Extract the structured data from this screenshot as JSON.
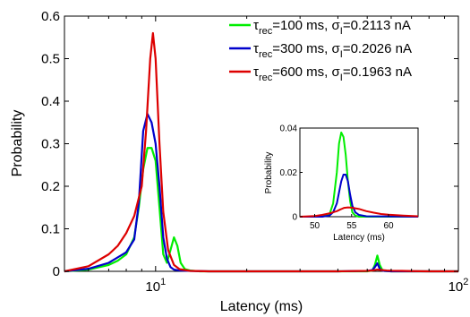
{
  "chart_data": [
    {
      "type": "line",
      "title": "",
      "xlabel": "Latency (ms)",
      "ylabel": "Probability",
      "xscale": "log",
      "xlim": [
        5,
        100
      ],
      "ylim": [
        0,
        0.6
      ],
      "xticks": [
        {
          "value": 10,
          "base": "10",
          "exp": "1"
        },
        {
          "value": 100,
          "base": "10",
          "exp": "2"
        }
      ],
      "yticks": [
        {
          "value": 0,
          "label": "0"
        },
        {
          "value": 0.1,
          "label": "0.1"
        },
        {
          "value": 0.2,
          "label": "0.2"
        },
        {
          "value": 0.3,
          "label": "0.3"
        },
        {
          "value": 0.4,
          "label": "0.4"
        },
        {
          "value": 0.5,
          "label": "0.5"
        },
        {
          "value": 0.6,
          "label": "0.6"
        }
      ],
      "legend_position": "top-right",
      "series": [
        {
          "id": "tau100",
          "color": "#00ee00",
          "legend": {
            "a": "τ",
            "a_sub": "rec",
            "b": "=100 ms, σ",
            "b_sub": "I",
            "c": "=0.2113 nA"
          },
          "x": [
            5,
            6,
            7,
            7.5,
            8,
            8.5,
            8.8,
            9.1,
            9.4,
            9.7,
            10.0,
            10.3,
            10.6,
            10.9,
            11.2,
            11.5,
            11.8,
            12.1,
            12.5,
            13,
            14,
            16,
            20,
            30,
            40,
            50,
            52,
            53,
            54,
            55,
            56,
            57,
            60,
            70,
            80,
            100
          ],
          "y": [
            0,
            0.004,
            0.015,
            0.025,
            0.04,
            0.08,
            0.15,
            0.24,
            0.29,
            0.29,
            0.26,
            0.15,
            0.04,
            0.02,
            0.05,
            0.08,
            0.06,
            0.02,
            0.005,
            0.002,
            0,
            0,
            0,
            0,
            0,
            0,
            0.002,
            0.015,
            0.037,
            0.015,
            0.004,
            0.001,
            0,
            0,
            0,
            0
          ]
        },
        {
          "id": "tau300",
          "color": "#0000cc",
          "legend": {
            "a": "τ",
            "a_sub": "rec",
            "b": "=300 ms, σ",
            "b_sub": "I",
            "c": "=0.2026 nA"
          },
          "x": [
            5,
            6,
            7,
            8,
            8.5,
            8.8,
            9.1,
            9.4,
            9.7,
            10.0,
            10.3,
            10.6,
            10.9,
            11.2,
            11.5,
            12,
            13,
            15,
            20,
            30,
            40,
            50,
            52,
            53,
            54,
            55,
            56,
            57,
            60,
            70,
            80,
            100
          ],
          "y": [
            0,
            0.006,
            0.02,
            0.045,
            0.075,
            0.16,
            0.33,
            0.37,
            0.35,
            0.3,
            0.2,
            0.08,
            0.03,
            0.01,
            0.004,
            0.002,
            0.001,
            0,
            0,
            0,
            0,
            0.001,
            0.003,
            0.01,
            0.019,
            0.006,
            0.002,
            0.001,
            0,
            0,
            0,
            0
          ]
        },
        {
          "id": "tau600",
          "color": "#dd0000",
          "legend": {
            "a": "τ",
            "a_sub": "rec",
            "b": "=600 ms, σ",
            "b_sub": "I",
            "c": "=0.1963 nA"
          },
          "x": [
            5,
            6,
            7,
            7.5,
            8,
            8.5,
            9,
            9.3,
            9.6,
            9.8,
            10.0,
            10.3,
            10.6,
            11,
            11.5,
            12,
            13,
            15,
            20,
            30,
            40,
            50,
            52,
            53,
            54,
            56,
            58,
            60,
            65,
            70,
            80,
            100
          ],
          "y": [
            0,
            0.012,
            0.04,
            0.06,
            0.09,
            0.13,
            0.2,
            0.33,
            0.5,
            0.56,
            0.5,
            0.3,
            0.14,
            0.05,
            0.015,
            0.005,
            0.001,
            0,
            0,
            0,
            0,
            0.001,
            0.002,
            0.003,
            0.004,
            0.003,
            0.002,
            0.0015,
            0.001,
            0.0005,
            0,
            0
          ]
        }
      ]
    },
    {
      "type": "line",
      "title": "",
      "inset": true,
      "xlabel": "Latency (ms)",
      "ylabel": "Probability",
      "xlim": [
        48,
        64
      ],
      "ylim": [
        0,
        0.04
      ],
      "xticks": [
        {
          "value": 50,
          "label": "50"
        },
        {
          "value": 55,
          "label": "55"
        },
        {
          "value": 60,
          "label": "60"
        }
      ],
      "yticks": [
        {
          "value": 0,
          "label": "0"
        },
        {
          "value": 0.02,
          "label": "0.02"
        },
        {
          "value": 0.04,
          "label": "0.04"
        }
      ],
      "series": [
        {
          "id": "tau100",
          "color": "#00ee00",
          "x": [
            48,
            51,
            52,
            52.5,
            53,
            53.3,
            53.6,
            53.9,
            54.2,
            54.5,
            54.8,
            55.1,
            55.5,
            56,
            64
          ],
          "y": [
            0,
            0,
            0.001,
            0.006,
            0.02,
            0.033,
            0.038,
            0.036,
            0.028,
            0.016,
            0.007,
            0.002,
            0.0005,
            0,
            0
          ]
        },
        {
          "id": "tau300",
          "color": "#0000cc",
          "x": [
            48,
            51,
            52,
            52.5,
            53,
            53.3,
            53.6,
            53.9,
            54.2,
            54.5,
            54.8,
            55.1,
            55.5,
            56,
            57,
            64
          ],
          "y": [
            0,
            0,
            0.0005,
            0.002,
            0.006,
            0.011,
            0.016,
            0.019,
            0.019,
            0.016,
            0.01,
            0.005,
            0.002,
            0.0008,
            0.0002,
            0
          ]
        },
        {
          "id": "tau600",
          "color": "#dd0000",
          "x": [
            48,
            50,
            51,
            52,
            53,
            53.5,
            54,
            54.5,
            55,
            56,
            57,
            58,
            59,
            60,
            62,
            64
          ],
          "y": [
            0,
            0.0003,
            0.0008,
            0.0015,
            0.0025,
            0.0033,
            0.004,
            0.0042,
            0.0041,
            0.0035,
            0.0025,
            0.0018,
            0.0012,
            0.0009,
            0.0005,
            0.0002
          ]
        }
      ]
    }
  ]
}
